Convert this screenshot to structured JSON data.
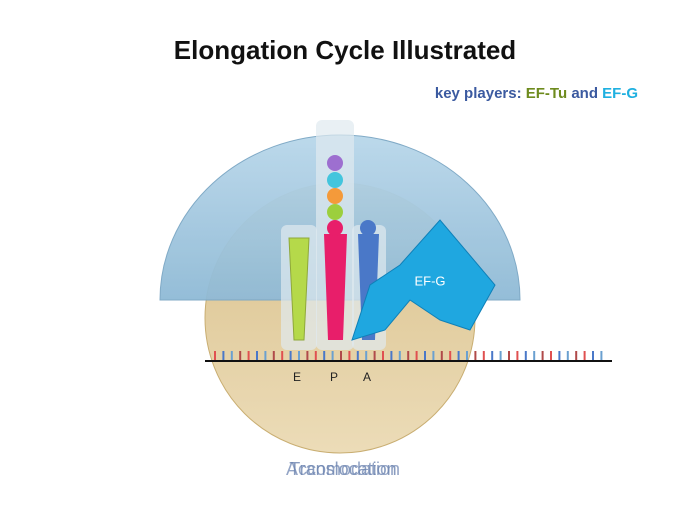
{
  "header": {
    "title": "Elongation Cycle Illustrated",
    "subtitle": {
      "prefix": "key players:",
      "factor1": "EF-Tu",
      "joiner": "and",
      "factor2": "EF-G"
    }
  },
  "diagram": {
    "ef_g_label": "EF-G",
    "sites": [
      "E",
      "P",
      "A"
    ]
  },
  "captions": [
    "Accomodation",
    "Translocation"
  ]
}
